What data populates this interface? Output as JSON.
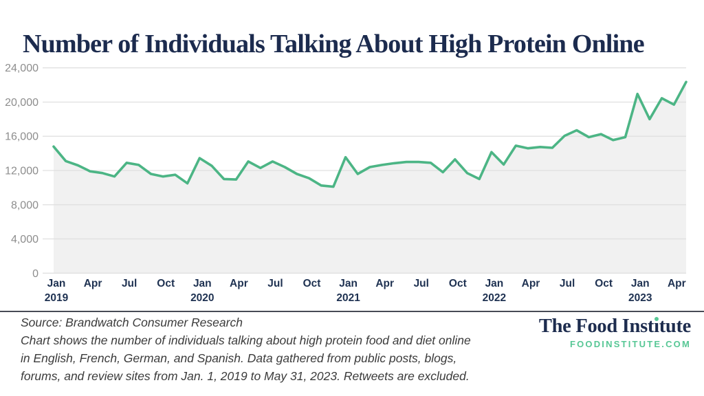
{
  "title": "Number of Individuals Talking About High Protein Online",
  "chart_data": {
    "type": "area",
    "title": "Number of Individuals Talking About High Protein Online",
    "xlabel": "",
    "ylabel": "",
    "x_unit": "month",
    "x_range": "Jan 2019 - May 2023",
    "ylim": [
      0,
      24000
    ],
    "grid": true,
    "y_ticks": [
      0,
      4000,
      8000,
      12000,
      16000,
      20000,
      24000
    ],
    "y_tick_labels": [
      "0",
      "4,000",
      "8,000",
      "12,000",
      "16,000",
      "20,000",
      "24,000"
    ],
    "x_ticks": [
      {
        "index": 0,
        "month": "Jan",
        "year": "2019"
      },
      {
        "index": 3,
        "month": "Apr",
        "year": ""
      },
      {
        "index": 6,
        "month": "Jul",
        "year": ""
      },
      {
        "index": 9,
        "month": "Oct",
        "year": ""
      },
      {
        "index": 12,
        "month": "Jan",
        "year": "2020"
      },
      {
        "index": 15,
        "month": "Apr",
        "year": ""
      },
      {
        "index": 18,
        "month": "Jul",
        "year": ""
      },
      {
        "index": 21,
        "month": "Oct",
        "year": ""
      },
      {
        "index": 24,
        "month": "Jan",
        "year": "2021"
      },
      {
        "index": 27,
        "month": "Apr",
        "year": ""
      },
      {
        "index": 30,
        "month": "Jul",
        "year": ""
      },
      {
        "index": 33,
        "month": "Oct",
        "year": ""
      },
      {
        "index": 36,
        "month": "Jan",
        "year": "2022"
      },
      {
        "index": 39,
        "month": "Apr",
        "year": ""
      },
      {
        "index": 42,
        "month": "Jul",
        "year": ""
      },
      {
        "index": 45,
        "month": "Oct",
        "year": ""
      },
      {
        "index": 48,
        "month": "Jan",
        "year": "2023"
      },
      {
        "index": 51,
        "month": "Apr",
        "year": ""
      }
    ],
    "series": [
      {
        "name": "Individuals talking about high protein online",
        "start_month": "Jan 2019",
        "values": [
          14800,
          13100,
          12600,
          11900,
          11700,
          11300,
          12900,
          12650,
          11600,
          11300,
          11500,
          10500,
          13450,
          12550,
          11000,
          10950,
          13050,
          12300,
          13050,
          12400,
          11600,
          11100,
          10250,
          10100,
          13550,
          11600,
          12400,
          12650,
          12850,
          13000,
          13000,
          12900,
          11800,
          13300,
          11700,
          11000,
          14150,
          12700,
          14900,
          14600,
          14750,
          14650,
          16050,
          16700,
          15900,
          16250,
          15550,
          15900,
          20950,
          18000,
          20450,
          19700,
          22350
        ]
      }
    ],
    "colors": {
      "line": "#4cb585",
      "area_fill": "#f1f1f1",
      "gridline": "#e0e0e0",
      "y_tick_text": "#8d8d8d",
      "x_tick_text": "#1e3151"
    }
  },
  "footer": {
    "lines": [
      "Source: Brandwatch Consumer Research",
      "Chart shows the number of individuals talking about high protein food and diet online",
      "in English, French, German, and Spanish. Data gathered from public posts, blogs,",
      "forums, and review sites from Jan. 1, 2019 to May 31, 2023. Retweets are excluded."
    ]
  },
  "logo": {
    "brand": "The Food Institute",
    "url": "FOODINSTITUTE.COM",
    "dot_color": "#57c795",
    "brand_color": "#1d2c4e"
  }
}
